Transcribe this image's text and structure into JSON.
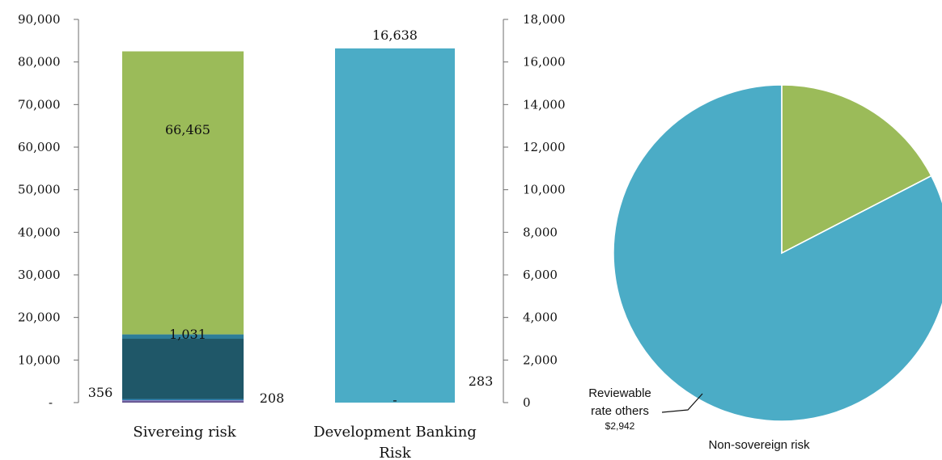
{
  "chart_data": [
    {
      "type": "bar",
      "stacked": true,
      "categories": [
        "Sivereing risk",
        "Development Banking Risk"
      ],
      "left_axis": {
        "ylim": [
          0,
          90000
        ],
        "ticks": [
          "-",
          "10,000",
          "20,000",
          "30,000",
          "40,000",
          "50,000",
          "60,000",
          "70,000",
          "80,000",
          "90,000"
        ]
      },
      "right_axis": {
        "ylim": [
          0,
          18000
        ],
        "ticks": [
          "0",
          "2,000",
          "4,000",
          "6,000",
          "8,000",
          "10,000",
          "12,000",
          "14,000",
          "16,000",
          "18,000"
        ]
      },
      "series": [
        {
          "axis": "left",
          "color": "#5b4b8a",
          "values": [
            356,
            null
          ]
        },
        {
          "axis": "left",
          "color": "#8f7fc0",
          "values": [
            208,
            null
          ]
        },
        {
          "axis": "left",
          "color": "#2b7fae",
          "values": [
            283,
            null
          ]
        },
        {
          "axis": "left",
          "color": "#1f5768",
          "values": [
            14150,
            null
          ]
        },
        {
          "axis": "left",
          "color": "#2e7d98",
          "values": [
            1031,
            null
          ]
        },
        {
          "axis": "left",
          "color": "#9bbb59",
          "values": [
            66465,
            null
          ]
        },
        {
          "axis": "right",
          "color": "#4bacc6",
          "values": [
            null,
            16638
          ]
        }
      ],
      "data_labels": {
        "green": "66,465",
        "teal_small": "1,031",
        "bottom_a": "356",
        "bottom_b": "208",
        "bottom_c": "283",
        "dev_total": "16,638",
        "dev_dash": "-"
      }
    },
    {
      "type": "pie",
      "title": "Non-sovereign risk",
      "slices": [
        {
          "value": 2942,
          "color": "#4bacc6"
        },
        {
          "value": 620,
          "color": "#9bbb59"
        }
      ],
      "callout": {
        "line1": "Reviewable",
        "line2": "rate others",
        "line3": "$2,942"
      }
    }
  ]
}
